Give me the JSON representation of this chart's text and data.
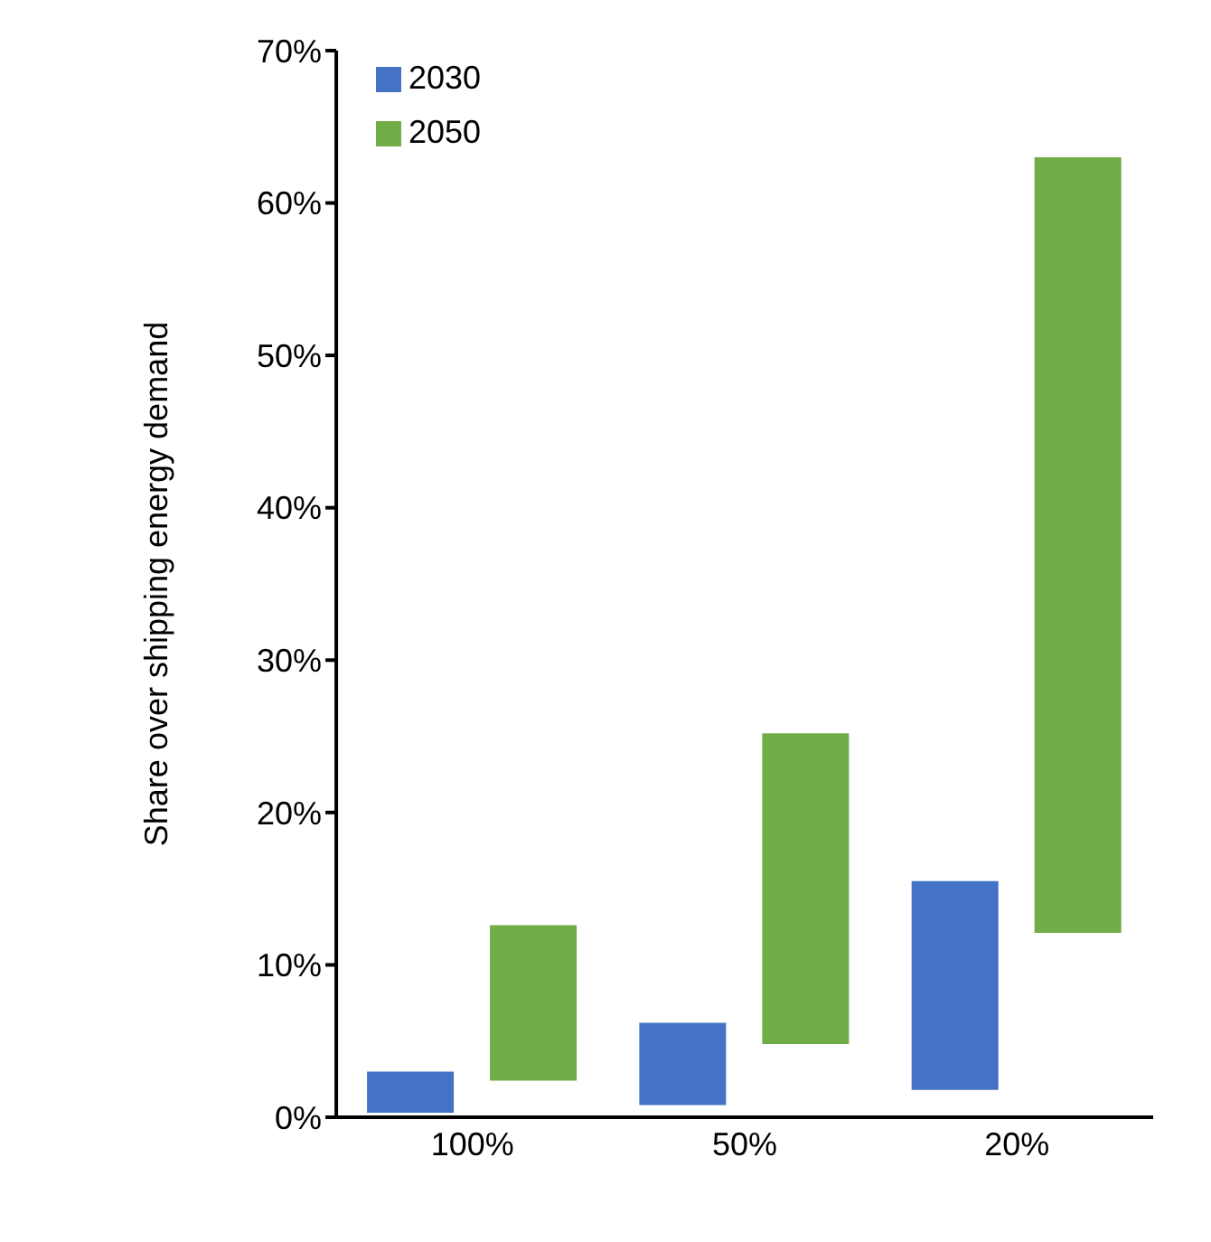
{
  "chart_data": {
    "type": "bar",
    "ylabel": "Share over shipping energy demand",
    "categories": [
      "100%",
      "50%",
      "20%"
    ],
    "series": [
      {
        "name": "2030",
        "color": "#4472c4",
        "base": [
          0.3,
          0.8,
          1.8
        ],
        "values": [
          2.7,
          5.4,
          13.7
        ]
      },
      {
        "name": "2050",
        "color": "#70ad47",
        "base": [
          2.4,
          4.8,
          12.1
        ],
        "values": [
          10.2,
          20.4,
          50.9
        ]
      }
    ],
    "ylim": [
      0,
      70
    ],
    "yticks": [
      {
        "value": 0,
        "label": "0%"
      },
      {
        "value": 10,
        "label": "10%"
      },
      {
        "value": 20,
        "label": "20%"
      },
      {
        "value": 30,
        "label": "30%"
      },
      {
        "value": 40,
        "label": "40%"
      },
      {
        "value": 50,
        "label": "50%"
      },
      {
        "value": 60,
        "label": "60%"
      },
      {
        "value": 70,
        "label": "70%"
      }
    ],
    "grid": false,
    "legend": "top left"
  }
}
